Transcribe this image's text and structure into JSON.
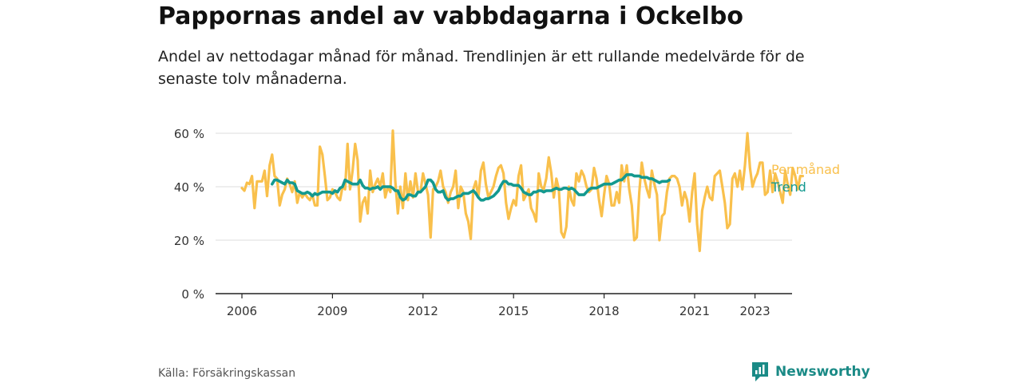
{
  "title": "Pappornas andel av vabbdagarna i Ockelbo",
  "subtitle": "Andel av nettodagar månad för månad. Trendlinjen är ett rullande medelvärde för de senaste tolv månaderna.",
  "source": "Källa: Försäkringskassan",
  "brand": "Newsworthy",
  "colors": {
    "monthly": "#f9c04c",
    "trend": "#13998f",
    "brand": "#1a8a86",
    "grid": "#dddddd",
    "axis": "#222222"
  },
  "chart_data": {
    "type": "line",
    "y_unit": "%",
    "ylim": [
      0,
      60
    ],
    "y_ticks": [
      {
        "value": 0,
        "label": "0 %"
      },
      {
        "value": 20,
        "label": "20 %"
      },
      {
        "value": 40,
        "label": "40 %"
      },
      {
        "value": 60,
        "label": "60 %"
      }
    ],
    "x_ticks": [
      {
        "value": 2006,
        "label": "2006"
      },
      {
        "value": 2009,
        "label": "2009"
      },
      {
        "value": 2012,
        "label": "2012"
      },
      {
        "value": 2015,
        "label": "2015"
      },
      {
        "value": 2018,
        "label": "2018"
      },
      {
        "value": 2021,
        "label": "2021"
      },
      {
        "value": 2023,
        "label": "2023"
      }
    ],
    "grid": true,
    "legend": "right end labels",
    "series": [
      {
        "name": "Per månad",
        "start": "2006-01",
        "values": [
          39.5,
          38.5,
          41.5,
          41,
          44,
          32,
          42,
          42,
          42,
          46,
          36.5,
          48,
          52,
          44,
          43,
          33,
          37,
          39,
          43,
          41,
          38,
          42,
          34,
          38,
          36,
          37.5,
          36,
          35,
          37,
          33,
          33,
          55,
          52,
          44,
          35,
          36,
          39,
          38,
          36,
          35,
          40,
          39,
          56,
          39,
          46,
          56,
          50,
          27,
          34,
          36,
          30,
          46,
          38,
          41,
          43,
          40,
          45,
          36,
          40,
          38,
          61,
          42,
          30,
          40,
          32,
          45,
          35,
          42,
          36,
          45,
          38,
          38,
          45,
          41,
          37,
          21,
          39,
          40,
          42,
          46,
          40,
          38,
          34,
          38,
          40,
          46,
          32,
          40,
          38,
          30,
          27,
          20.5,
          39,
          42,
          36,
          46,
          49,
          41,
          36,
          38,
          40,
          44,
          47,
          48,
          45,
          34,
          28,
          32,
          35,
          33,
          44,
          48,
          35,
          37,
          39,
          32,
          30,
          27,
          45,
          40,
          39,
          43,
          51,
          45,
          36,
          43,
          39,
          23,
          21,
          25,
          40,
          35,
          33,
          45,
          42,
          46,
          44,
          40,
          38,
          39,
          47,
          43,
          35,
          29,
          37,
          44,
          41,
          33,
          33,
          38,
          34,
          48,
          42,
          48,
          39,
          33,
          20,
          21,
          38,
          49,
          43,
          39,
          36,
          46,
          41,
          37,
          20,
          29,
          30,
          38,
          43,
          44,
          44,
          43,
          40,
          33,
          38,
          35,
          27,
          38,
          45,
          26,
          16,
          31,
          36,
          40,
          36,
          35,
          44,
          45,
          46,
          40,
          34,
          24.5,
          26,
          43,
          45,
          40,
          46,
          39,
          48,
          60,
          47,
          40,
          43,
          45,
          49,
          49,
          37,
          38,
          46,
          38,
          45,
          42,
          38,
          34,
          46,
          41,
          37,
          47,
          44,
          39,
          44,
          44
        ]
      },
      {
        "name": "Trend",
        "start": "2007-01",
        "values": [
          41,
          42.5,
          42.5,
          42,
          41.5,
          41,
          42.5,
          41.5,
          41.5,
          41,
          38.5,
          38,
          37.5,
          37.5,
          38,
          37.5,
          36.5,
          37.5,
          37,
          37.5,
          38,
          38,
          38,
          38,
          37.5,
          38.5,
          38,
          39.5,
          40,
          42.5,
          42,
          41.5,
          41,
          41,
          41,
          42.5,
          40.5,
          39.5,
          39.5,
          39,
          39.5,
          39.5,
          40,
          39,
          40,
          40,
          40,
          40,
          39.5,
          38.5,
          38.5,
          36,
          35,
          35.5,
          37,
          37,
          36.5,
          36.5,
          38,
          38,
          39,
          40,
          42.5,
          42.5,
          41.5,
          39,
          38,
          38,
          38.5,
          36,
          35,
          35.5,
          35.5,
          36,
          36.5,
          36.5,
          37.5,
          37.5,
          37.5,
          38,
          38.5,
          37.5,
          36,
          35,
          35,
          35.5,
          35.5,
          36,
          36.5,
          37.5,
          38.5,
          40.5,
          42,
          42,
          41,
          41,
          40.5,
          40.5,
          40.5,
          39.5,
          38,
          37.5,
          37,
          37,
          38,
          38,
          38.5,
          38.5,
          38,
          38.5,
          38.5,
          38.5,
          39,
          39.5,
          39,
          39,
          39.5,
          39.5,
          39,
          39.5,
          39,
          38,
          37,
          37,
          37,
          38,
          39,
          39.5,
          39.5,
          39.5,
          40,
          40.5,
          41,
          41,
          41,
          41,
          41.5,
          42,
          42.5,
          42.5,
          43.5,
          44.5,
          44.5,
          44.5,
          44,
          44,
          44,
          43.5,
          43.5,
          43.5,
          43,
          43,
          42.5,
          42,
          41.5,
          42,
          42,
          42,
          42.5
        ]
      }
    ]
  }
}
